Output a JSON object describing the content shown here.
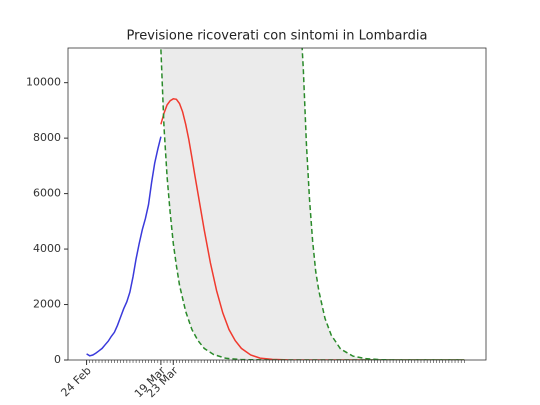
{
  "chart_data": {
    "type": "line",
    "title": "Previsione ricoverati con sintomi in Lombardia",
    "xlim": [
      -6,
      129
    ],
    "ylim": [
      0,
      11250
    ],
    "yticks": [
      0,
      2000,
      4000,
      6000,
      8000,
      10000
    ],
    "xticks": [
      {
        "value": 0,
        "label": "24 Feb"
      },
      {
        "value": 24,
        "label": "19 Mar"
      },
      {
        "value": 28,
        "label": "23 Mar"
      }
    ],
    "xminorticks": [
      0,
      1,
      2,
      3,
      4,
      5,
      6,
      7,
      8,
      9,
      10,
      11,
      12,
      13,
      14,
      15,
      16,
      17,
      18,
      19,
      20,
      21,
      22,
      23,
      24,
      25,
      26,
      27,
      28,
      29,
      30,
      31,
      32,
      33,
      34,
      35,
      36,
      37,
      38,
      39,
      40,
      41,
      42,
      43,
      44,
      45,
      46,
      47,
      48,
      49,
      50,
      51,
      52,
      53,
      54,
      55,
      56,
      57,
      58,
      59,
      60,
      61,
      62,
      63,
      64,
      65,
      66,
      67,
      68,
      69,
      70,
      71,
      72,
      73,
      74,
      75,
      76,
      77,
      78,
      79,
      80,
      81,
      82,
      83,
      84,
      85,
      86,
      87,
      88,
      89,
      90,
      91,
      92,
      93,
      94,
      95,
      96,
      97,
      98,
      99,
      100,
      101,
      102,
      103,
      104,
      105,
      106,
      107,
      108,
      109,
      110,
      111,
      112,
      113,
      114,
      115,
      116,
      117,
      118,
      119,
      120,
      121,
      122
    ],
    "band_color": "#ebebeb",
    "series": [
      {
        "color": "#3a3adb",
        "style": "solid",
        "x": [
          0,
          1,
          2,
          3,
          4,
          5,
          6,
          7,
          8,
          9,
          10,
          11,
          12,
          13,
          14,
          15,
          16,
          17,
          18,
          19,
          20,
          21,
          22,
          23,
          24
        ],
        "values": [
          220,
          150,
          180,
          250,
          330,
          420,
          550,
          680,
          850,
          1000,
          1250,
          1550,
          1850,
          2100,
          2450,
          3000,
          3650,
          4200,
          4700,
          5100,
          5600,
          6400,
          7100,
          7600,
          8050
        ]
      },
      {
        "color": "#f03a2e",
        "style": "solid",
        "x": [
          24,
          25,
          26,
          27,
          28,
          29,
          30,
          31,
          32,
          33,
          34,
          35,
          36,
          38,
          40,
          42,
          44,
          46,
          48,
          50,
          53,
          56,
          60,
          65,
          70,
          80,
          100,
          122
        ],
        "values": [
          8500,
          8900,
          9200,
          9350,
          9420,
          9400,
          9250,
          8950,
          8500,
          7950,
          7300,
          6650,
          6000,
          4700,
          3500,
          2500,
          1700,
          1100,
          700,
          420,
          180,
          70,
          20,
          5,
          0,
          0,
          0,
          0
        ]
      },
      {
        "color": "#2a8a2a",
        "style": "dashed",
        "x": [
          24,
          25,
          26,
          27,
          28,
          29,
          30,
          32,
          34,
          36,
          38,
          41,
          45,
          50,
          60,
          122
        ],
        "values": [
          11200,
          8400,
          6600,
          5300,
          4200,
          3400,
          2700,
          1750,
          1100,
          700,
          420,
          200,
          60,
          15,
          0,
          0
        ]
      },
      {
        "color": "#2a8a2a",
        "style": "dashed",
        "x": [
          69,
          70,
          71,
          72,
          73,
          74,
          75,
          77,
          79,
          82,
          86,
          90,
          95,
          100,
          122
        ],
        "values": [
          12500,
          10500,
          7800,
          5800,
          4300,
          3200,
          2500,
          1500,
          900,
          400,
          140,
          50,
          10,
          0,
          0
        ]
      }
    ]
  }
}
